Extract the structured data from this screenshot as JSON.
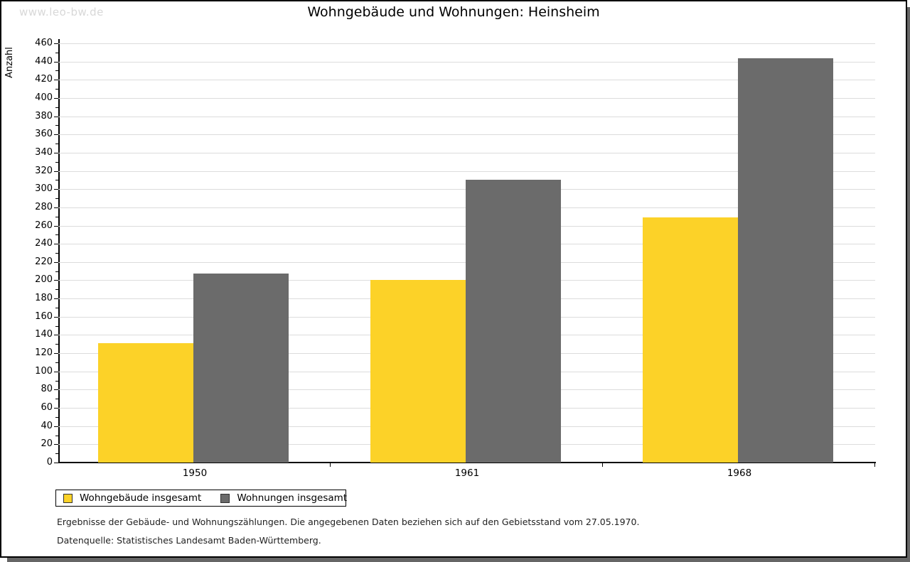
{
  "page": {
    "watermark": "www.leo-bw.de"
  },
  "chart_data": {
    "type": "bar",
    "title": "Wohngebäude und Wohnungen: Heinsheim",
    "categories": [
      "1950",
      "1961",
      "1968"
    ],
    "series": [
      {
        "name": "Wohngebäude insgesamt",
        "color": "#fcd228",
        "values": [
          131,
          200,
          269
        ]
      },
      {
        "name": "Wohnungen insgesamt",
        "color": "#6b6b6b",
        "values": [
          207,
          310,
          444
        ]
      }
    ],
    "xlabel": "",
    "ylabel": "Anzahl",
    "ylim": [
      0,
      460
    ],
    "ytick_step": 20,
    "yminor_step": 10,
    "grid": true,
    "gridline_color": "#dcdcdc",
    "legend_position": "bottom-left"
  },
  "footer": {
    "line1": "Ergebnisse der Gebäude- und Wohnungszählungen. Die angegebenen Daten beziehen sich auf den Gebietsstand vom 27.05.1970.",
    "line2": "Datenquelle: Statistisches Landesamt Baden-Württemberg."
  }
}
